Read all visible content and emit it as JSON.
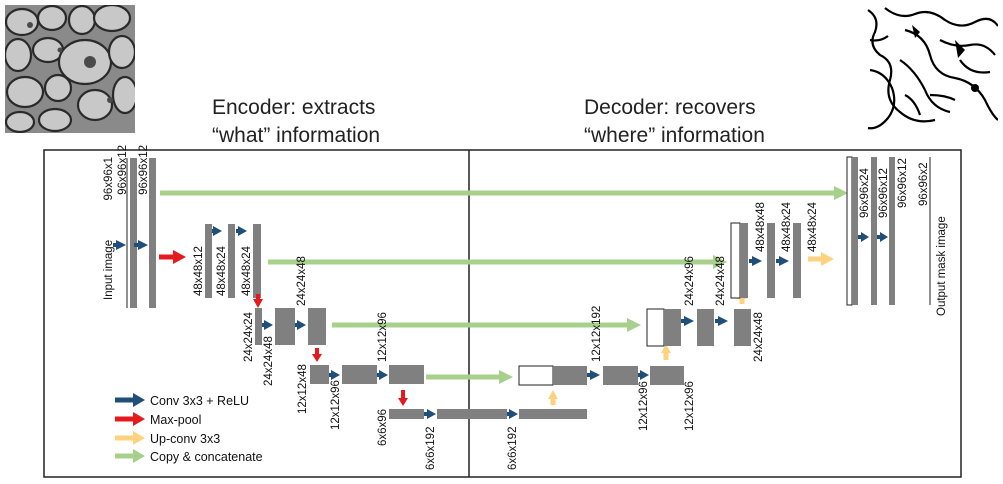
{
  "headings": {
    "encoder_line1": "Encoder: extracts",
    "encoder_line2": "“what” information",
    "decoder_line1": "Decoder: recovers",
    "decoder_line2": "“where” information"
  },
  "io_labels": {
    "input": "Input image",
    "output": "Output mask image"
  },
  "dims": {
    "in_1": "96x96x1",
    "in_2": "96x96x12",
    "in_3": "96x96x12",
    "enc2_1": "48x48x12",
    "enc2_2": "48x48x24",
    "enc2_3": "48x48x24",
    "enc3_1": "24x24x24",
    "enc3_2": "24x24x48",
    "enc3_3": "24x24x48",
    "enc4_1": "12x12x48",
    "enc4_2": "12x12x96",
    "enc4_3": "12x12x96",
    "bot_1": "6x6x96",
    "bot_2": "6x6x192",
    "bot_3": "6x6x192",
    "dec4_1": "12x12x192",
    "dec4_2": "12x12x96",
    "dec4_3": "12x12x96",
    "dec3_1": "24x24x96",
    "dec3_2": "24x24x48",
    "dec3_3": "24x24x48",
    "dec2_1": "48x48x48",
    "dec2_2": "48x48x24",
    "dec2_3": "48x48x24",
    "out_1": "96x96x24",
    "out_2": "96x96x12",
    "out_3": "96x96x12",
    "out_4": "96x96x2"
  },
  "legend": [
    {
      "label": "Conv 3x3 + ReLU",
      "color": "#1f4e79"
    },
    {
      "label": "Max-pool",
      "color": "#e41a1c"
    },
    {
      "label": "Up-conv 3x3",
      "color": "#ffd27f"
    },
    {
      "label": "Copy & concatenate",
      "color": "#a8d08d"
    }
  ],
  "colors": {
    "block": "#808080",
    "conv": "#1f4e79",
    "pool": "#e41a1c",
    "upconv": "#ffd27f",
    "copy": "#a8d08d",
    "frame": "#222222"
  },
  "images": {
    "input_image": "microscopy-cell-image",
    "output_image": "segmentation-mask-image"
  }
}
